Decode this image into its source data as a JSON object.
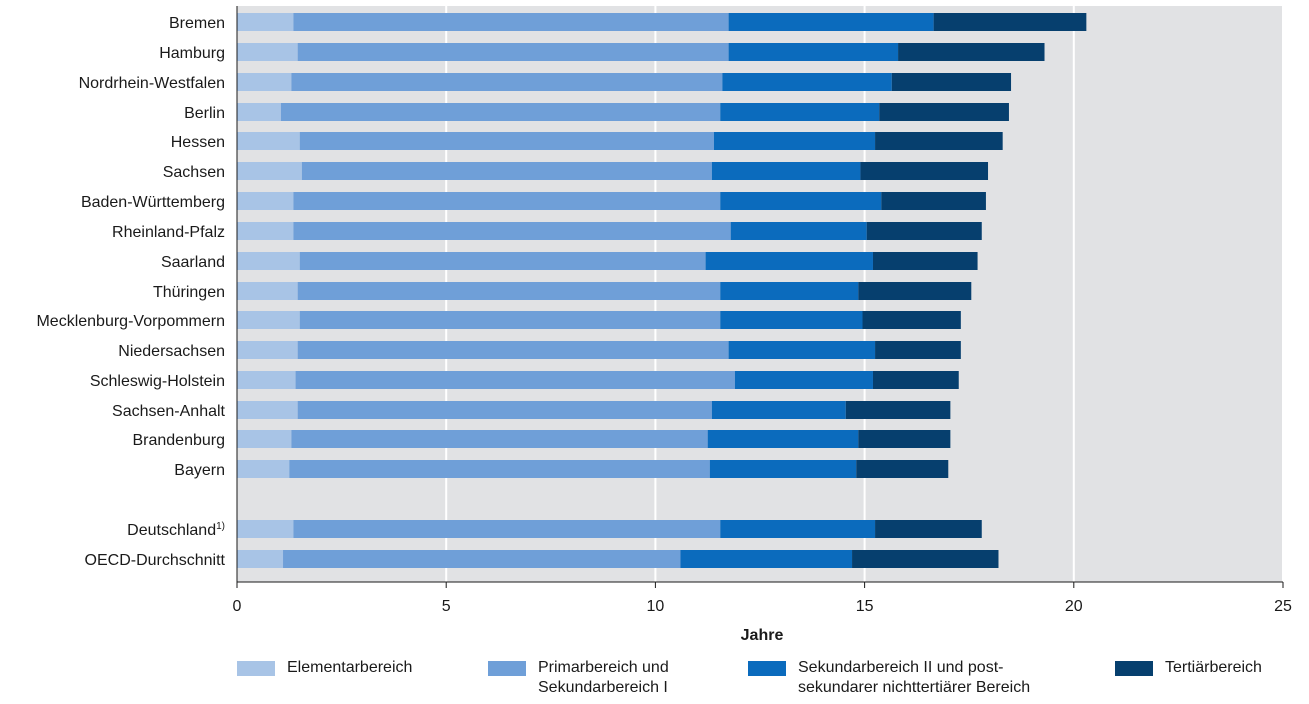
{
  "chart_data": {
    "type": "bar",
    "orientation": "horizontal",
    "stacked": true,
    "title": "",
    "xlabel": "Jahre",
    "ylabel": "",
    "xlim": [
      0,
      25
    ],
    "xticks": [
      0,
      5,
      10,
      15,
      20,
      25
    ],
    "grid": true,
    "legend_position": "bottom",
    "categories": [
      "Bremen",
      "Hamburg",
      "Nordrhein-Westfalen",
      "Berlin",
      "Hessen",
      "Sachsen",
      "Baden-Württemberg",
      "Rheinland-Pfalz",
      "Saarland",
      "Thüringen",
      "Mecklenburg-Vorpommern",
      "Niedersachsen",
      "Schleswig-Holstein",
      "Sachsen-Anhalt",
      "Brandenburg",
      "Bayern",
      "Deutschland",
      "OECD-Durchschnitt"
    ],
    "category_footnotes": {
      "Deutschland": "1)"
    },
    "series": [
      {
        "name": "Elementarbereich",
        "color": "#a8c4e6",
        "values": [
          1.35,
          1.45,
          1.3,
          1.05,
          1.5,
          1.55,
          1.35,
          1.35,
          1.5,
          1.45,
          1.5,
          1.45,
          1.4,
          1.45,
          1.3,
          1.25,
          1.35,
          1.1
        ]
      },
      {
        "name": "Primarbereich und Sekundarbereich I",
        "color": "#6f9fd8",
        "values": [
          10.4,
          10.3,
          10.3,
          10.5,
          9.9,
          9.8,
          10.2,
          10.45,
          9.7,
          10.1,
          10.05,
          10.3,
          10.5,
          9.9,
          9.95,
          10.05,
          10.2,
          9.5
        ]
      },
      {
        "name": "Sekundarbereich II und post-sekundarer nichttertiärer Bereich",
        "color": "#0b6bbd",
        "values": [
          4.9,
          4.05,
          4.05,
          3.8,
          3.85,
          3.55,
          3.85,
          3.25,
          4.0,
          3.3,
          3.4,
          3.5,
          3.3,
          3.2,
          3.6,
          3.5,
          3.7,
          4.1
        ]
      },
      {
        "name": "Tertiärbereich",
        "color": "#063f6e",
        "values": [
          3.65,
          3.5,
          2.85,
          3.1,
          3.05,
          3.05,
          2.5,
          2.75,
          2.5,
          2.7,
          2.35,
          2.05,
          2.05,
          2.5,
          2.2,
          2.2,
          2.55,
          3.5
        ]
      }
    ]
  },
  "legend": [
    {
      "label": "Elementarbereich",
      "color": "#a8c4e6"
    },
    {
      "label": "Primarbereich und\nSekundarbereich I",
      "color": "#6f9fd8"
    },
    {
      "label": "Sekundarbereich II und post-\nsekundarer nichttertiärer Bereich",
      "color": "#0b6bbd"
    },
    {
      "label": "Tertiärbereich",
      "color": "#063f6e"
    }
  ],
  "colors": {
    "plot_background": "#e1e2e4",
    "gridline": "#ffffff",
    "axis": "#1a1a1a"
  }
}
